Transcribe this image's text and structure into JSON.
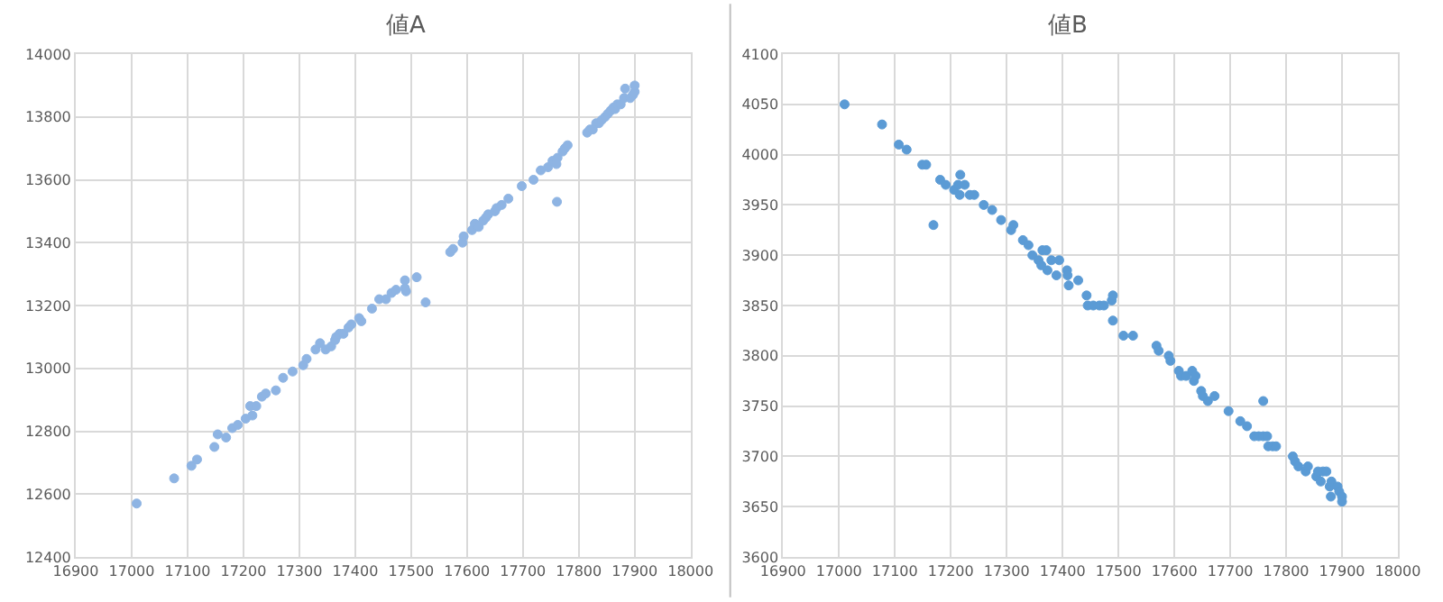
{
  "chart_data": [
    {
      "type": "scatter",
      "title": "値A",
      "color": "#8eb4e3",
      "marker": "circle",
      "grid": true,
      "xlim": [
        16900,
        18000
      ],
      "xticks": [
        16900,
        17000,
        17100,
        17200,
        17300,
        17400,
        17500,
        17600,
        17700,
        17800,
        17900,
        18000
      ],
      "ylim": [
        12400,
        14000
      ],
      "yticks": [
        12400,
        12600,
        12800,
        13000,
        13200,
        13400,
        13600,
        13800,
        14000
      ],
      "x": [
        17009,
        17076,
        17107,
        17117,
        17148,
        17154,
        17169,
        17180,
        17190,
        17204,
        17212,
        17216,
        17223,
        17233,
        17240,
        17258,
        17271,
        17288,
        17307,
        17313,
        17329,
        17337,
        17347,
        17357,
        17364,
        17366,
        17372,
        17379,
        17388,
        17393,
        17407,
        17411,
        17430,
        17443,
        17455,
        17465,
        17473,
        17489,
        17489,
        17491,
        17510,
        17526,
        17570,
        17575,
        17592,
        17594,
        17609,
        17614,
        17621,
        17629,
        17634,
        17638,
        17650,
        17653,
        17662,
        17674,
        17698,
        17719,
        17732,
        17745,
        17753,
        17760,
        17762,
        17761,
        17771,
        17775,
        17780,
        17815,
        17820,
        17825,
        17831,
        17836,
        17841,
        17847,
        17852,
        17857,
        17862,
        17865,
        17869,
        17875,
        17881,
        17883,
        17892,
        17897,
        17900,
        17900
      ],
      "values": [
        12570,
        12650,
        12690,
        12710,
        12750,
        12790,
        12780,
        12810,
        12820,
        12840,
        12880,
        12850,
        12880,
        12910,
        12920,
        12930,
        12970,
        12990,
        13010,
        13030,
        13060,
        13080,
        13060,
        13070,
        13090,
        13100,
        13110,
        13110,
        13130,
        13140,
        13160,
        13150,
        13190,
        13220,
        13220,
        13240,
        13250,
        13280,
        13255,
        13245,
        13290,
        13210,
        13370,
        13380,
        13400,
        13420,
        13440,
        13460,
        13450,
        13470,
        13480,
        13490,
        13500,
        13510,
        13520,
        13540,
        13580,
        13600,
        13630,
        13640,
        13660,
        13650,
        13670,
        13530,
        13690,
        13700,
        13710,
        13750,
        13760,
        13760,
        13780,
        13780,
        13790,
        13800,
        13810,
        13820,
        13830,
        13825,
        13840,
        13840,
        13860,
        13890,
        13860,
        13870,
        13880,
        13900
      ]
    },
    {
      "type": "scatter",
      "title": "値B",
      "color": "#5b9bd5",
      "marker": "circle",
      "grid": true,
      "xlim": [
        16900,
        18000
      ],
      "xticks": [
        16900,
        17000,
        17100,
        17200,
        17300,
        17400,
        17500,
        17600,
        17700,
        17800,
        17900,
        18000
      ],
      "ylim": [
        3600,
        4100
      ],
      "yticks": [
        3600,
        3650,
        3700,
        3750,
        3800,
        3850,
        3900,
        3950,
        4000,
        4050,
        4100
      ],
      "x": [
        17010,
        17077,
        17107,
        17121,
        17149,
        17156,
        17169,
        17181,
        17191,
        17206,
        17213,
        17217,
        17216,
        17225,
        17234,
        17242,
        17259,
        17274,
        17290,
        17308,
        17312,
        17329,
        17339,
        17346,
        17357,
        17362,
        17364,
        17371,
        17373,
        17380,
        17389,
        17394,
        17408,
        17409,
        17411,
        17428,
        17443,
        17445,
        17455,
        17466,
        17474,
        17488,
        17490,
        17490,
        17509,
        17526,
        17568,
        17572,
        17590,
        17593,
        17608,
        17612,
        17621,
        17632,
        17635,
        17638,
        17648,
        17651,
        17660,
        17672,
        17697,
        17718,
        17730,
        17743,
        17751,
        17759,
        17759,
        17766,
        17768,
        17776,
        17782,
        17812,
        17816,
        17822,
        17835,
        17839,
        17854,
        17857,
        17862,
        17866,
        17872,
        17878,
        17881,
        17880,
        17892,
        17895,
        17900,
        17900
      ],
      "values": [
        4050,
        4030,
        4010,
        4005,
        3990,
        3990,
        3930,
        3975,
        3970,
        3965,
        3970,
        3980,
        3960,
        3970,
        3960,
        3960,
        3950,
        3945,
        3935,
        3925,
        3930,
        3915,
        3910,
        3900,
        3895,
        3890,
        3905,
        3905,
        3885,
        3895,
        3880,
        3895,
        3885,
        3880,
        3870,
        3875,
        3860,
        3850,
        3850,
        3850,
        3850,
        3855,
        3860,
        3835,
        3820,
        3820,
        3810,
        3805,
        3800,
        3795,
        3785,
        3780,
        3780,
        3785,
        3775,
        3780,
        3765,
        3760,
        3755,
        3760,
        3745,
        3735,
        3730,
        3720,
        3720,
        3720,
        3755,
        3720,
        3710,
        3710,
        3710,
        3700,
        3695,
        3690,
        3685,
        3690,
        3680,
        3685,
        3675,
        3685,
        3685,
        3670,
        3675,
        3660,
        3670,
        3665,
        3660,
        3655
      ]
    }
  ]
}
